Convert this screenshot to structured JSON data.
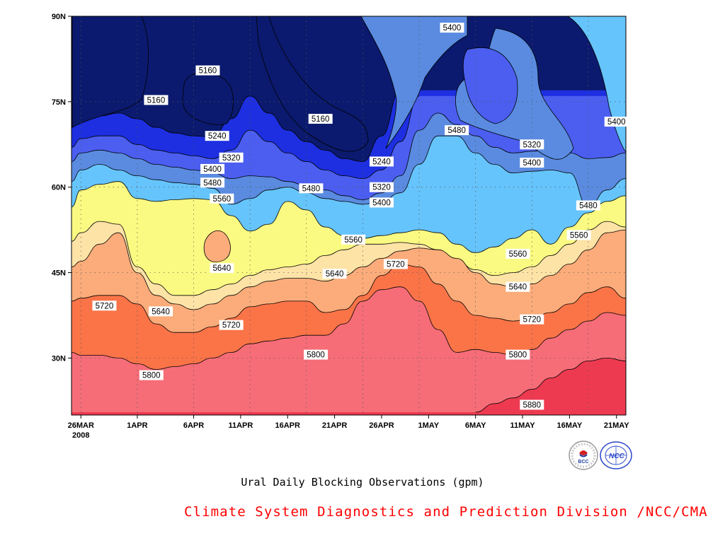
{
  "chart_data": {
    "type": "contour",
    "title": "Ural Daily Blocking Observations (gpm)",
    "xlabel": "",
    "ylabel": "",
    "x_ticks": [
      "26MAR",
      "1APR",
      "6APR",
      "11APR",
      "16APR",
      "21APR",
      "26APR",
      "1MAY",
      "6MAY",
      "11MAY",
      "16MAY",
      "21MAY"
    ],
    "x_subtick": "2008",
    "y_ticks": [
      "90N",
      "75N",
      "60N",
      "45N",
      "30N"
    ],
    "xlim_days": [
      -1,
      58
    ],
    "ylim_lat": [
      20,
      90
    ],
    "grid": true,
    "contour_levels": [
      5080,
      5160,
      5240,
      5320,
      5400,
      5480,
      5560,
      5640,
      5720,
      5800,
      5880
    ],
    "contour_fill_colors": [
      "#0b1a6e",
      "#1d2fe0",
      "#4b5ef0",
      "#5a8be0",
      "#66c4fc",
      "#fafa82",
      "#fde3a6",
      "#fbac7a",
      "#fa7448",
      "#f66d78",
      "#ee3a50"
    ],
    "contour_labels": [
      {
        "text": "5400",
        "day": 39.5,
        "lat": 88.0
      },
      {
        "text": "5160",
        "day": 13.5,
        "lat": 80.5
      },
      {
        "text": "5160",
        "day": 8.0,
        "lat": 75.3
      },
      {
        "text": "5160",
        "day": 25.5,
        "lat": 72.0
      },
      {
        "text": "5400",
        "day": 57.0,
        "lat": 71.5
      },
      {
        "text": "5480",
        "day": 40.0,
        "lat": 70.0
      },
      {
        "text": "5240",
        "day": 14.5,
        "lat": 69.0
      },
      {
        "text": "5320",
        "day": 48.0,
        "lat": 67.5
      },
      {
        "text": "5320",
        "day": 16.0,
        "lat": 65.2
      },
      {
        "text": "5240",
        "day": 32.0,
        "lat": 64.5
      },
      {
        "text": "5400",
        "day": 48.0,
        "lat": 64.3
      },
      {
        "text": "5400",
        "day": 14.0,
        "lat": 63.2
      },
      {
        "text": "5480",
        "day": 14.0,
        "lat": 60.8
      },
      {
        "text": "5320",
        "day": 32.0,
        "lat": 60.0
      },
      {
        "text": "5480",
        "day": 24.5,
        "lat": 59.8
      },
      {
        "text": "5560",
        "day": 15.0,
        "lat": 58.0
      },
      {
        "text": "5400",
        "day": 32.0,
        "lat": 57.3
      },
      {
        "text": "5480",
        "day": 54.0,
        "lat": 56.8
      },
      {
        "text": "5560",
        "day": 53.0,
        "lat": 51.6
      },
      {
        "text": "5560",
        "day": 29.0,
        "lat": 50.8
      },
      {
        "text": "5560",
        "day": 46.5,
        "lat": 48.3
      },
      {
        "text": "5720",
        "day": 33.5,
        "lat": 46.5
      },
      {
        "text": "5640",
        "day": 15.0,
        "lat": 45.8
      },
      {
        "text": "5640",
        "day": 27.0,
        "lat": 44.8
      },
      {
        "text": "5640",
        "day": 46.5,
        "lat": 42.5
      },
      {
        "text": "5720",
        "day": 2.5,
        "lat": 39.2
      },
      {
        "text": "5640",
        "day": 8.5,
        "lat": 38.2
      },
      {
        "text": "5720",
        "day": 48.0,
        "lat": 36.8
      },
      {
        "text": "5720",
        "day": 16.0,
        "lat": 35.8
      },
      {
        "text": "5800",
        "day": 25.0,
        "lat": 30.6
      },
      {
        "text": "5800",
        "day": 46.5,
        "lat": 30.6
      },
      {
        "text": "5800",
        "day": 7.5,
        "lat": 27.0
      },
      {
        "text": "5880",
        "day": 48.0,
        "lat": 21.8
      }
    ]
  },
  "credit": "Climate System Diagnostics and Prediction Division /NCC/CMA",
  "logos": [
    {
      "name": "bcc-logo",
      "text": "BCC"
    },
    {
      "name": "ncc-logo",
      "text": "NCC"
    }
  ],
  "colors": {
    "credit": "#ff0000",
    "frame": "#000000",
    "grid": "#555555"
  }
}
